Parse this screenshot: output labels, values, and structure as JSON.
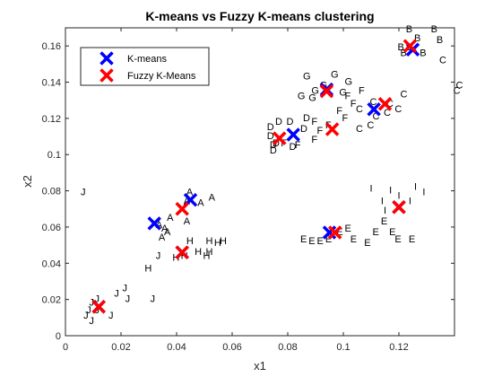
{
  "chart_data": {
    "type": "scatter",
    "title": "K-means vs Fuzzy K-means clustering",
    "xlabel": "x1",
    "ylabel": "x2",
    "xlim": [
      0,
      0.14
    ],
    "ylim": [
      0,
      0.17
    ],
    "xticks": [
      0,
      0.02,
      0.04,
      0.06,
      0.08,
      0.1,
      0.12
    ],
    "xtick_labels": [
      "0",
      "0.02",
      "0.04",
      "0.06",
      "0.08",
      "0.1",
      "0.12"
    ],
    "yticks": [
      0,
      0.02,
      0.04,
      0.06,
      0.08,
      0.1,
      0.12,
      0.14,
      0.16
    ],
    "ytick_labels": [
      "0",
      "0.02",
      "0.04",
      "0.06",
      "0.08",
      "0.1",
      "0.12",
      "0.14",
      "0.16"
    ],
    "grid": false,
    "legend_position": "top-left",
    "series": [
      {
        "name": "K-means",
        "marker": "x",
        "color": "#0000ff",
        "points": [
          [
            0.012,
            0.016
          ],
          [
            0.032,
            0.062
          ],
          [
            0.045,
            0.075
          ],
          [
            0.042,
            0.046
          ],
          [
            0.082,
            0.111
          ],
          [
            0.095,
            0.057
          ],
          [
            0.094,
            0.136
          ],
          [
            0.111,
            0.125
          ],
          [
            0.12,
            0.071
          ],
          [
            0.125,
            0.158
          ]
        ]
      },
      {
        "name": "Fuzzy K-Means",
        "marker": "x",
        "color": "#ff0000",
        "points": [
          [
            0.012,
            0.016
          ],
          [
            0.042,
            0.07
          ],
          [
            0.042,
            0.046
          ],
          [
            0.077,
            0.109
          ],
          [
            0.096,
            0.114
          ],
          [
            0.097,
            0.057
          ],
          [
            0.094,
            0.135
          ],
          [
            0.115,
            0.128
          ],
          [
            0.12,
            0.071
          ],
          [
            0.124,
            0.16
          ]
        ]
      }
    ],
    "point_labels": [
      {
        "text": "B",
        "x": 0.1225,
        "y": 0.1675
      },
      {
        "text": "B",
        "x": 0.1315,
        "y": 0.1675
      },
      {
        "text": "B",
        "x": 0.1255,
        "y": 0.1625
      },
      {
        "text": "B",
        "x": 0.1335,
        "y": 0.1615
      },
      {
        "text": "B",
        "x": 0.1195,
        "y": 0.1575
      },
      {
        "text": "B",
        "x": 0.1225,
        "y": 0.1575
      },
      {
        "text": "B",
        "x": 0.1205,
        "y": 0.1545
      },
      {
        "text": "B",
        "x": 0.1275,
        "y": 0.1545
      },
      {
        "text": "C",
        "x": 0.1345,
        "y": 0.1505
      },
      {
        "text": "C",
        "x": 0.1405,
        "y": 0.1365
      },
      {
        "text": "C",
        "x": 0.1395,
        "y": 0.1335
      },
      {
        "text": "G",
        "x": 0.0855,
        "y": 0.1415
      },
      {
        "text": "G",
        "x": 0.0955,
        "y": 0.1425
      },
      {
        "text": "G",
        "x": 0.1005,
        "y": 0.1385
      },
      {
        "text": "G",
        "x": 0.0885,
        "y": 0.1335
      },
      {
        "text": "G",
        "x": 0.0915,
        "y": 0.1365
      },
      {
        "text": "G",
        "x": 0.0835,
        "y": 0.1305
      },
      {
        "text": "G",
        "x": 0.0875,
        "y": 0.1295
      },
      {
        "text": "G",
        "x": 0.0985,
        "y": 0.1325
      },
      {
        "text": "F",
        "x": 0.1005,
        "y": 0.1305
      },
      {
        "text": "F",
        "x": 0.1055,
        "y": 0.1335
      },
      {
        "text": "F",
        "x": 0.1025,
        "y": 0.1265
      },
      {
        "text": "F",
        "x": 0.0975,
        "y": 0.1225
      },
      {
        "text": "F",
        "x": 0.0995,
        "y": 0.1185
      },
      {
        "text": "F",
        "x": 0.0935,
        "y": 0.1145
      },
      {
        "text": "F",
        "x": 0.0905,
        "y": 0.1115
      },
      {
        "text": "F",
        "x": 0.0885,
        "y": 0.1065
      },
      {
        "text": "F",
        "x": 0.0825,
        "y": 0.1035
      },
      {
        "text": "F",
        "x": 0.0775,
        "y": 0.1045
      },
      {
        "text": "F",
        "x": 0.0885,
        "y": 0.1165
      },
      {
        "text": "D",
        "x": 0.0755,
        "y": 0.1165
      },
      {
        "text": "D",
        "x": 0.0795,
        "y": 0.1165
      },
      {
        "text": "D",
        "x": 0.0855,
        "y": 0.1185
      },
      {
        "text": "D",
        "x": 0.0725,
        "y": 0.1135
      },
      {
        "text": "D",
        "x": 0.0725,
        "y": 0.1085
      },
      {
        "text": "D",
        "x": 0.0735,
        "y": 0.1035
      },
      {
        "text": "D",
        "x": 0.0735,
        "y": 0.1005
      },
      {
        "text": "D",
        "x": 0.0845,
        "y": 0.1125
      },
      {
        "text": "D",
        "x": 0.0805,
        "y": 0.1025
      },
      {
        "text": "D",
        "x": 0.0745,
        "y": 0.1045
      },
      {
        "text": "C",
        "x": 0.1045,
        "y": 0.1235
      },
      {
        "text": "C",
        "x": 0.1105,
        "y": 0.1195
      },
      {
        "text": "C",
        "x": 0.1145,
        "y": 0.1215
      },
      {
        "text": "C",
        "x": 0.1185,
        "y": 0.1235
      },
      {
        "text": "C",
        "x": 0.1085,
        "y": 0.1145
      },
      {
        "text": "C",
        "x": 0.1045,
        "y": 0.1125
      },
      {
        "text": "C",
        "x": 0.1205,
        "y": 0.1315
      },
      {
        "text": "C",
        "x": 0.1095,
        "y": 0.1275
      },
      {
        "text": "C",
        "x": 0.1155,
        "y": 0.1265
      },
      {
        "text": "A",
        "x": 0.0435,
        "y": 0.0775
      },
      {
        "text": "A",
        "x": 0.0515,
        "y": 0.0745
      },
      {
        "text": "A",
        "x": 0.0475,
        "y": 0.0715
      },
      {
        "text": "A",
        "x": 0.0425,
        "y": 0.0725
      },
      {
        "text": "A",
        "x": 0.0365,
        "y": 0.0635
      },
      {
        "text": "A",
        "x": 0.0325,
        "y": 0.0595
      },
      {
        "text": "A",
        "x": 0.0345,
        "y": 0.0575
      },
      {
        "text": "A",
        "x": 0.0355,
        "y": 0.0555
      },
      {
        "text": "A",
        "x": 0.0335,
        "y": 0.0525
      },
      {
        "text": "A",
        "x": 0.0425,
        "y": 0.0615
      },
      {
        "text": "H",
        "x": 0.0435,
        "y": 0.0505
      },
      {
        "text": "H",
        "x": 0.0505,
        "y": 0.0505
      },
      {
        "text": "H",
        "x": 0.0535,
        "y": 0.0495
      },
      {
        "text": "H",
        "x": 0.0555,
        "y": 0.0505
      },
      {
        "text": "H",
        "x": 0.0465,
        "y": 0.0445
      },
      {
        "text": "H",
        "x": 0.0505,
        "y": 0.0445
      },
      {
        "text": "H",
        "x": 0.0415,
        "y": 0.0425
      },
      {
        "text": "H",
        "x": 0.0385,
        "y": 0.0415
      },
      {
        "text": "H",
        "x": 0.0495,
        "y": 0.0425
      },
      {
        "text": "H",
        "x": 0.0285,
        "y": 0.0355
      },
      {
        "text": "J",
        "x": 0.0055,
        "y": 0.0775
      },
      {
        "text": "J",
        "x": 0.0325,
        "y": 0.0425
      },
      {
        "text": "J",
        "x": 0.0205,
        "y": 0.0245
      },
      {
        "text": "J",
        "x": 0.0175,
        "y": 0.0215
      },
      {
        "text": "J",
        "x": 0.0215,
        "y": 0.0185
      },
      {
        "text": "J",
        "x": 0.0305,
        "y": 0.0185
      },
      {
        "text": "J",
        "x": 0.0105,
        "y": 0.0185
      },
      {
        "text": "J",
        "x": 0.0085,
        "y": 0.0165
      },
      {
        "text": "J",
        "x": 0.0075,
        "y": 0.0125
      },
      {
        "text": "J",
        "x": 0.0065,
        "y": 0.0095
      },
      {
        "text": "J",
        "x": 0.0155,
        "y": 0.0095
      },
      {
        "text": "J",
        "x": 0.0105,
        "y": 0.0125
      },
      {
        "text": "J",
        "x": 0.0085,
        "y": 0.0065
      },
      {
        "text": "I",
        "x": 0.1095,
        "y": 0.0795
      },
      {
        "text": "I",
        "x": 0.1165,
        "y": 0.0785
      },
      {
        "text": "I",
        "x": 0.1255,
        "y": 0.0805
      },
      {
        "text": "I",
        "x": 0.1285,
        "y": 0.0775
      },
      {
        "text": "I",
        "x": 0.1195,
        "y": 0.0755
      },
      {
        "text": "I",
        "x": 0.1135,
        "y": 0.0725
      },
      {
        "text": "I",
        "x": 0.1235,
        "y": 0.0725
      },
      {
        "text": "I",
        "x": 0.1145,
        "y": 0.0675
      },
      {
        "text": "E",
        "x": 0.0845,
        "y": 0.0515
      },
      {
        "text": "E",
        "x": 0.0875,
        "y": 0.0505
      },
      {
        "text": "E",
        "x": 0.0905,
        "y": 0.0505
      },
      {
        "text": "E",
        "x": 0.0935,
        "y": 0.0515
      },
      {
        "text": "E",
        "x": 0.0975,
        "y": 0.0555
      },
      {
        "text": "E",
        "x": 0.1005,
        "y": 0.0575
      },
      {
        "text": "E",
        "x": 0.1025,
        "y": 0.0515
      },
      {
        "text": "E",
        "x": 0.1075,
        "y": 0.0495
      },
      {
        "text": "E",
        "x": 0.1105,
        "y": 0.0555
      },
      {
        "text": "E",
        "x": 0.1135,
        "y": 0.0615
      },
      {
        "text": "E",
        "x": 0.1165,
        "y": 0.0555
      },
      {
        "text": "E",
        "x": 0.1185,
        "y": 0.0515
      },
      {
        "text": "E",
        "x": 0.1235,
        "y": 0.0515
      }
    ]
  }
}
